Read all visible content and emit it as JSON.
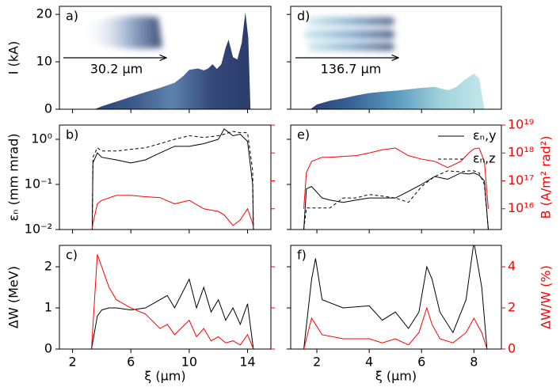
{
  "chart_data": [
    {
      "type": "area",
      "label": "a)",
      "ylabel": "I (kA)",
      "annotation": "30.2 µm",
      "xlim": [
        1.1,
        15.6
      ],
      "xticks": [
        2,
        6,
        10,
        14
      ],
      "ylim": [
        0,
        21.7
      ],
      "yticks": [
        0,
        10,
        20
      ],
      "x": [
        3.5,
        4,
        5,
        6,
        7,
        8,
        9,
        9.6,
        10,
        10.6,
        11,
        11.3,
        11.6,
        11.9,
        12.2,
        12.5,
        12.7,
        13,
        13.3,
        13.6,
        13.85,
        14.05,
        14.2
      ],
      "series": [
        {
          "color": [
            "#2f4373",
            "#3d5a8a",
            "#5e82ad",
            "#34497a",
            "#2b3d6b"
          ],
          "values": [
            0,
            0.6,
            1.6,
            2.6,
            3.6,
            4.5,
            5.6,
            7,
            8.3,
            8.6,
            8.2,
            8.6,
            9.5,
            8.5,
            9.5,
            13,
            14.7,
            11,
            10.5,
            14,
            20.5,
            15,
            0
          ]
        }
      ]
    },
    {
      "type": "area",
      "label": "d)",
      "annotation": "136.7 µm",
      "xlim": [
        1,
        9.05
      ],
      "xticks": [
        2,
        4,
        6,
        8
      ],
      "ylim": [
        0,
        21.7
      ],
      "yticks": [
        0,
        10,
        20
      ],
      "x": [
        1.75,
        2,
        2.5,
        3,
        3.5,
        4,
        4.5,
        5,
        5.5,
        6,
        6.5,
        7,
        7.3,
        7.6,
        8,
        8.2,
        8.4
      ],
      "series": [
        {
          "color": [
            "#2a3f74",
            "#3b6598",
            "#5c9cc0",
            "#9fd2dc",
            "#c3e7ea"
          ],
          "values": [
            0,
            1,
            1.8,
            2.3,
            2.9,
            3.4,
            3.7,
            3.9,
            4.2,
            4.5,
            4.7,
            4.0,
            4.6,
            6.0,
            7.5,
            6.5,
            0
          ]
        }
      ]
    },
    {
      "type": "line",
      "label": "b)",
      "ylabel": "εₙ (mm mrad)",
      "ylog": true,
      "y2log": true,
      "xlim": [
        1.1,
        15.6
      ],
      "xticks": [
        2,
        6,
        10,
        14
      ],
      "ylim": [
        0.01,
        2.07
      ],
      "yticks": [
        {
          "value": 0.01,
          "label": "10⁻²"
        },
        {
          "value": 0.1,
          "label": "10⁻¹"
        },
        {
          "value": 1,
          "label": "10⁰"
        }
      ],
      "y2lim": [
        1800000000000000.0,
        1e+19
      ],
      "y2ticks": [
        1e+16,
        1e+17,
        1e+18,
        1e+19
      ],
      "y2color": "#ff0000",
      "x": [
        3.35,
        3.4,
        3.7,
        4,
        5,
        6,
        7,
        8,
        9,
        10,
        11,
        12,
        12.4,
        13,
        13.5,
        14,
        14.35,
        14.4
      ],
      "series": [
        {
          "color": "#000000",
          "linestyle": "solid",
          "values": [
            0.01,
            0.3,
            0.5,
            0.4,
            0.35,
            0.3,
            0.35,
            0.5,
            0.7,
            0.7,
            0.8,
            1.0,
            1.7,
            1.2,
            1.3,
            0.9,
            0.1,
            0.01
          ]
        },
        {
          "color": "#000000",
          "linestyle": "dashed",
          "values": [
            0.01,
            0.4,
            0.65,
            0.55,
            0.55,
            0.6,
            0.65,
            0.8,
            1.0,
            1.2,
            1.1,
            1.2,
            1.3,
            1.5,
            1.4,
            1.4,
            0.2,
            0.01
          ]
        },
        {
          "color": "#ff0000",
          "linestyle": "solid",
          "axis": "y2",
          "values": [
            2000000000000000.0,
            3000000000000000.0,
            1.5e+16,
            2e+16,
            3e+16,
            3e+16,
            2.7e+16,
            2.5e+16,
            1.5e+16,
            2e+16,
            1e+16,
            8000000000000000.0,
            6000000000000000.0,
            2500000000000000.0,
            4000000000000000.0,
            1e+16,
            3000000000000000.0,
            2000000000000000.0
          ]
        }
      ]
    },
    {
      "type": "line",
      "label": "e)",
      "y2label": "B (A/m² rad²)",
      "ylog": true,
      "y2log": true,
      "legend": "upper right",
      "xlim": [
        1,
        9.05
      ],
      "xticks": [
        2,
        4,
        6,
        8
      ],
      "ylim": [
        0.01,
        2.07
      ],
      "yticks": [
        0.01,
        0.1,
        1
      ],
      "y2lim": [
        1800000000000000.0,
        1e+19
      ],
      "y2color": "#ff0000",
      "y2ticks": [
        {
          "value": 1e+16,
          "label": "10¹⁶"
        },
        {
          "value": 1e+17,
          "label": "10¹⁷"
        },
        {
          "value": 1e+18,
          "label": "10¹⁸"
        },
        {
          "value": 1e+19,
          "label": "10¹⁹"
        }
      ],
      "x": [
        1.5,
        1.6,
        1.8,
        2.2,
        2.5,
        3,
        3.5,
        4,
        4.5,
        5,
        5.5,
        6,
        6.5,
        7,
        7.5,
        7.8,
        8,
        8.2,
        8.4,
        8.55
      ],
      "series": [
        {
          "name": "εₙ,y",
          "color": "#000000",
          "linestyle": "solid",
          "values": [
            0.01,
            0.08,
            0.09,
            0.05,
            0.045,
            0.04,
            0.045,
            0.05,
            0.05,
            0.05,
            0.07,
            0.1,
            0.15,
            0.13,
            0.18,
            0.17,
            0.18,
            0.16,
            0.12,
            0.01
          ]
        },
        {
          "name": "εₙ,z",
          "color": "#000000",
          "linestyle": "dashed",
          "values": [
            0.01,
            0.03,
            0.03,
            0.03,
            0.03,
            0.05,
            0.05,
            0.06,
            0.055,
            0.05,
            0.04,
            0.09,
            0.15,
            0.2,
            0.19,
            0.2,
            0.2,
            0.18,
            0.1,
            0.01
          ]
        },
        {
          "color": "#ff0000",
          "linestyle": "solid",
          "axis": "y2",
          "values": [
            1e+16,
            2e+17,
            5e+17,
            7e+17,
            7e+17,
            7.5e+17,
            8e+17,
            1e+18,
            1.3e+18,
            1.5e+18,
            8e+17,
            6e+17,
            5e+17,
            3e+17,
            5e+17,
            1e+18,
            1.4e+18,
            1.5e+18,
            5e+17,
            1e+16
          ]
        }
      ]
    },
    {
      "type": "line",
      "label": "c)",
      "ylabel": "ΔW (MeV)",
      "xlabel": "ξ (µm)",
      "xlim": [
        1.1,
        15.6
      ],
      "xticks": [
        2,
        6,
        10,
        14
      ],
      "ylim": [
        0,
        2.52
      ],
      "yticks": [
        0,
        1,
        2
      ],
      "y2lim": [
        0,
        5.04
      ],
      "y2ticks": [
        0,
        2,
        4
      ],
      "y2color": "#ff0000",
      "x": [
        1.1,
        3.3,
        3.7,
        4,
        4.5,
        5,
        6,
        7,
        8,
        8.5,
        9,
        10,
        10.5,
        11,
        11.5,
        12,
        12.5,
        13,
        13.5,
        14,
        14.4,
        15.6
      ],
      "series": [
        {
          "color": "#000000",
          "linestyle": "solid",
          "values": [
            0,
            0,
            0.8,
            0.95,
            1.0,
            1.0,
            0.95,
            1.0,
            1.2,
            1.3,
            1.0,
            1.7,
            1.0,
            1.5,
            0.9,
            1.2,
            0.7,
            1.0,
            0.6,
            1.1,
            0,
            0
          ]
        },
        {
          "color": "#ff0000",
          "linestyle": "solid",
          "axis": "y2",
          "values": [
            0,
            0,
            4.6,
            4.0,
            3.0,
            2.4,
            2.0,
            1.7,
            1.0,
            1.2,
            0.7,
            1.4,
            0.6,
            1.0,
            0.4,
            0.6,
            0.3,
            0.4,
            0.2,
            0.7,
            0,
            0
          ]
        }
      ]
    },
    {
      "type": "line",
      "label": "f)",
      "y2label": "ΔW/W (%)",
      "xlabel": "ξ (µm)",
      "xlim": [
        1,
        9.05
      ],
      "xticks": [
        2,
        4,
        6,
        8
      ],
      "ylim": [
        0,
        2.52
      ],
      "yticks": [
        0,
        1,
        2
      ],
      "y2lim": [
        0,
        5.04
      ],
      "y2ticks": [
        0,
        2,
        4
      ],
      "y2color": "#ff0000",
      "x": [
        1.0,
        1.5,
        1.8,
        1.95,
        2.2,
        3,
        4,
        4.5,
        5,
        5.5,
        5.9,
        6.2,
        6.4,
        6.7,
        7.2,
        7.7,
        8,
        8.3,
        8.5,
        9.05
      ],
      "series": [
        {
          "color": "#000000",
          "linestyle": "solid",
          "values": [
            0,
            0,
            1.7,
            2.2,
            1.2,
            1.0,
            1.05,
            0.7,
            0.9,
            0.5,
            0.9,
            2.0,
            1.7,
            0.9,
            0.4,
            1.2,
            2.6,
            1.5,
            0,
            0
          ]
        },
        {
          "color": "#ff0000",
          "linestyle": "solid",
          "axis": "y2",
          "values": [
            0,
            0,
            1.5,
            1.2,
            0.7,
            0.5,
            0.5,
            0.3,
            0.5,
            0.2,
            0.8,
            2.0,
            1.2,
            0.5,
            0.3,
            0.8,
            1.5,
            0.8,
            0,
            0
          ]
        }
      ]
    }
  ]
}
